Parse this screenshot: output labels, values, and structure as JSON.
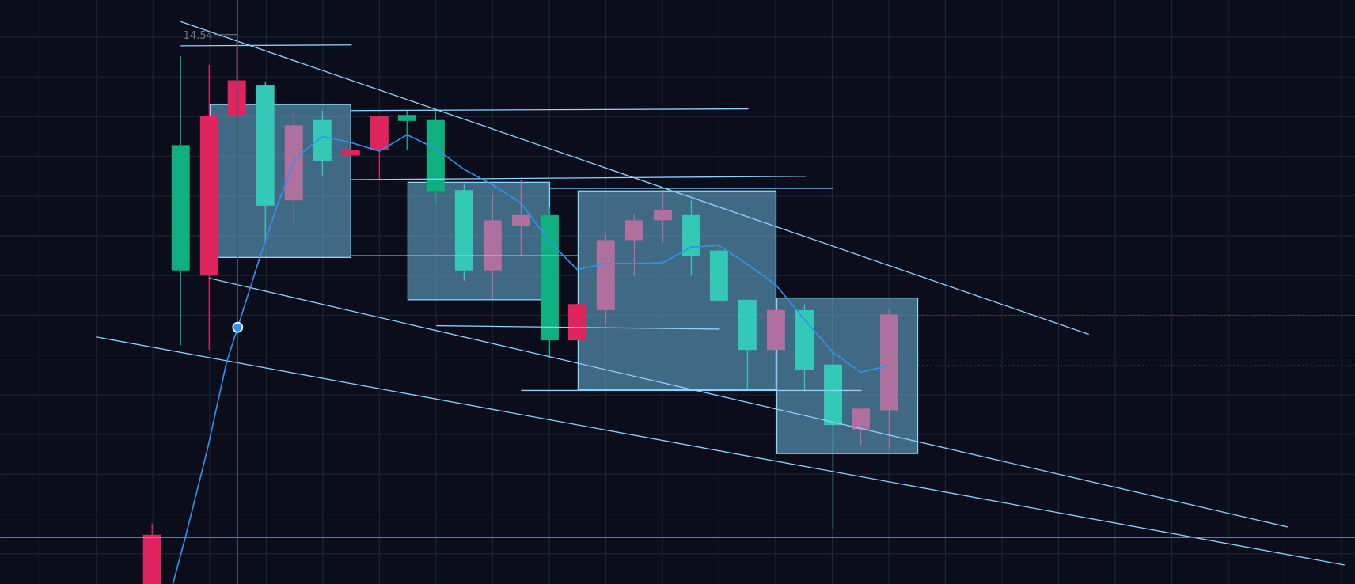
{
  "price_label": "14.54"
}
